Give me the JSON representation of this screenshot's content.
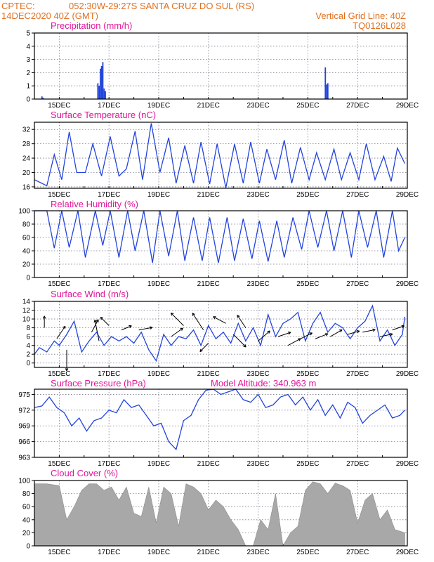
{
  "header": {
    "source": "CPTEC:",
    "location": "052:30W-29:27S  SANTA CRUZ DO SUL (RS)",
    "date": "14DEC2020 40Z (GMT)",
    "grid_note": "Vertical Grid Line: 40Z",
    "code": "TQ0126L028"
  },
  "x_ticks": [
    "15DEC",
    "17DEC",
    "19DEC",
    "21DEC",
    "23DEC",
    "25DEC",
    "27DEC",
    "29DEC"
  ],
  "colors": {
    "header": "#e07020",
    "title": "#e0169a",
    "line": "#2244dd",
    "cloud": "#a8a8a8"
  },
  "chart_data": [
    {
      "type": "bar",
      "title": "Precipitation (mm/h)",
      "x_unit": "days since 14DEC2020",
      "ylim": [
        0,
        5
      ],
      "yticks": [
        0,
        1,
        2,
        3,
        4,
        5
      ],
      "x": [
        0.3,
        0.35,
        2.55,
        2.6,
        2.65,
        2.7,
        2.75,
        2.8,
        2.85,
        11.7,
        11.75,
        11.8
      ],
      "values": [
        0.2,
        0.1,
        1.2,
        1.0,
        2.3,
        2.5,
        2.8,
        0.8,
        0.6,
        2.4,
        1.1,
        1.2
      ]
    },
    {
      "type": "line",
      "title": "Surface Temperature (nC)",
      "x_unit": "days since 14DEC2020",
      "ylim": [
        15.6,
        34
      ],
      "yticks": [
        16,
        20,
        24,
        28,
        32
      ],
      "x": [
        0,
        0.5,
        0.8,
        1.1,
        1.4,
        1.7,
        2.05,
        2.35,
        2.7,
        3.05,
        3.4,
        3.7,
        4.05,
        4.35,
        4.7,
        5.05,
        5.4,
        5.7,
        6.05,
        6.4,
        6.7,
        7.05,
        7.35,
        7.7,
        8.05,
        8.4,
        8.7,
        9.05,
        9.35,
        9.7,
        10.05,
        10.35,
        10.7,
        11.05,
        11.35,
        11.7,
        12.05,
        12.35,
        12.7,
        13.05,
        13.35,
        13.7,
        14.05,
        14.35,
        14.6,
        14.9
      ],
      "values": [
        18,
        16.3,
        25,
        18,
        31.3,
        20,
        20,
        28,
        19,
        30,
        19,
        21,
        31.5,
        18,
        33.7,
        20,
        29.7,
        17,
        27.5,
        17,
        28.5,
        16.8,
        28,
        15.7,
        27.9,
        17,
        28.5,
        17,
        26.5,
        18,
        29,
        17,
        27,
        18,
        25.5,
        18,
        26.5,
        18,
        25.5,
        18,
        28,
        18,
        24.5,
        17.5,
        26.8,
        22.5
      ]
    },
    {
      "type": "line",
      "title": "Relative Humidity (%)",
      "x_unit": "days since 14DEC2020",
      "ylim": [
        0,
        100
      ],
      "yticks": [
        0,
        20,
        40,
        60,
        80,
        100
      ],
      "x": [
        0,
        0.5,
        0.8,
        1.1,
        1.4,
        1.75,
        2.05,
        2.45,
        2.75,
        3.05,
        3.4,
        3.75,
        4.05,
        4.4,
        4.75,
        5.05,
        5.4,
        5.75,
        6.05,
        6.4,
        6.75,
        7.05,
        7.4,
        7.75,
        8.05,
        8.4,
        8.75,
        9.05,
        9.4,
        9.75,
        10.05,
        10.4,
        10.75,
        11.05,
        11.4,
        11.75,
        12.05,
        12.4,
        12.75,
        13.05,
        13.4,
        13.75,
        14.05,
        14.4,
        14.65,
        14.9
      ],
      "values": [
        100,
        100,
        44,
        100,
        45,
        100,
        30,
        100,
        48,
        100,
        30,
        100,
        40,
        100,
        22,
        100,
        32,
        100,
        25,
        90,
        25,
        90,
        22,
        90,
        25,
        88,
        28,
        85,
        24,
        85,
        30,
        90,
        42,
        100,
        45,
        100,
        40,
        100,
        30,
        100,
        45,
        100,
        30,
        100,
        40,
        60
      ]
    },
    {
      "type": "line",
      "title": "Surface Wind (m/s)",
      "x_unit": "days since 14DEC2020",
      "ylim": [
        -1,
        14
      ],
      "yticks": [
        0,
        2,
        4,
        6,
        8,
        10,
        12,
        14
      ],
      "x": [
        0,
        0.2,
        0.5,
        0.8,
        1.0,
        1.3,
        1.6,
        1.9,
        2.2,
        2.5,
        2.8,
        3.1,
        3.4,
        3.7,
        4.0,
        4.3,
        4.6,
        4.9,
        5.2,
        5.5,
        5.8,
        6.1,
        6.4,
        6.7,
        7.0,
        7.3,
        7.6,
        7.9,
        8.2,
        8.5,
        8.8,
        9.1,
        9.4,
        9.7,
        10.0,
        10.3,
        10.6,
        10.9,
        11.2,
        11.5,
        11.8,
        12.1,
        12.4,
        12.7,
        13.0,
        13.3,
        13.6,
        13.9,
        14.2,
        14.5,
        14.8,
        14.9
      ],
      "values": [
        2,
        3.5,
        2.5,
        5,
        4,
        6.5,
        9.5,
        2.5,
        5,
        7,
        4,
        6,
        5,
        6,
        4.5,
        7,
        3,
        0.5,
        6.5,
        4,
        6,
        5.5,
        7.5,
        4,
        8.5,
        5.5,
        7,
        4.5,
        9,
        5,
        8,
        4,
        11,
        6,
        9,
        10,
        11.5,
        5,
        9,
        11.5,
        7,
        9,
        8,
        5.5,
        8,
        9.5,
        13,
        5,
        7.5,
        4,
        6.5,
        10.5
      ],
      "vectors": [
        {
          "x": 0.4,
          "y": 8.0,
          "u": 0.0,
          "v": 1.4
        },
        {
          "x": 0.9,
          "y": 5.5,
          "u": 1.0,
          "v": 1.5
        },
        {
          "x": 1.3,
          "y": 3.0,
          "u": 0.0,
          "v": -2.5
        },
        {
          "x": 2.3,
          "y": 7.0,
          "u": 0.8,
          "v": 1.5
        },
        {
          "x": 2.6,
          "y": 5.0,
          "u": -0.5,
          "v": 2.5
        },
        {
          "x": 3.0,
          "y": 8.5,
          "u": -1.0,
          "v": 1.0
        },
        {
          "x": 3.5,
          "y": 7.5,
          "u": 1.2,
          "v": 0.5
        },
        {
          "x": 4.2,
          "y": 7.5,
          "u": 1.6,
          "v": 0.3
        },
        {
          "x": 5.5,
          "y": 6.0,
          "u": 1.4,
          "v": 1.0
        },
        {
          "x": 6.0,
          "y": 8.5,
          "u": -1.5,
          "v": 1.5
        },
        {
          "x": 6.8,
          "y": 7.5,
          "u": -1.3,
          "v": 2.0
        },
        {
          "x": 7.0,
          "y": 4.5,
          "u": -1.0,
          "v": -1.0
        },
        {
          "x": 7.7,
          "y": 9.0,
          "u": -1.5,
          "v": 0.8
        },
        {
          "x": 8.0,
          "y": 6.5,
          "u": 1.5,
          "v": -1.5
        },
        {
          "x": 8.5,
          "y": 8.0,
          "u": -1.0,
          "v": 1.5
        },
        {
          "x": 9.0,
          "y": 5.0,
          "u": 1.4,
          "v": 1.2
        },
        {
          "x": 9.8,
          "y": 6.0,
          "u": 1.5,
          "v": 0.5
        },
        {
          "x": 10.2,
          "y": 4.0,
          "u": 1.5,
          "v": 0.8
        },
        {
          "x": 10.7,
          "y": 5.5,
          "u": 1.4,
          "v": 0.7
        },
        {
          "x": 11.3,
          "y": 5.5,
          "u": 1.5,
          "v": 0.6
        },
        {
          "x": 11.9,
          "y": 6.0,
          "u": 1.4,
          "v": 0.8
        },
        {
          "x": 12.6,
          "y": 6.5,
          "u": 1.4,
          "v": 0.4
        },
        {
          "x": 13.2,
          "y": 7.0,
          "u": 1.5,
          "v": 0.3
        },
        {
          "x": 13.9,
          "y": 6.0,
          "u": 1.5,
          "v": 0.3
        },
        {
          "x": 14.4,
          "y": 7.5,
          "u": 1.4,
          "v": 0.5
        }
      ]
    },
    {
      "type": "line",
      "title": "Surface Pressure (hPa)",
      "annotation": "Model Altitude: 340.963 m",
      "x_unit": "days since 14DEC2020",
      "ylim": [
        963,
        976
      ],
      "yticks": [
        963,
        966,
        969,
        972,
        975
      ],
      "x": [
        0,
        0.3,
        0.6,
        0.9,
        1.2,
        1.5,
        1.8,
        2.1,
        2.4,
        2.7,
        3.0,
        3.3,
        3.6,
        3.9,
        4.2,
        4.5,
        4.8,
        5.1,
        5.4,
        5.7,
        6.0,
        6.3,
        6.6,
        6.9,
        7.2,
        7.5,
        7.8,
        8.1,
        8.4,
        8.7,
        9.0,
        9.3,
        9.6,
        9.9,
        10.2,
        10.5,
        10.8,
        11.1,
        11.4,
        11.7,
        12.0,
        12.3,
        12.6,
        12.9,
        13.2,
        13.5,
        13.8,
        14.1,
        14.4,
        14.7,
        14.9
      ],
      "values": [
        972.5,
        972.8,
        974.5,
        972.5,
        971.5,
        969,
        970.5,
        968,
        970,
        970.5,
        972,
        971.5,
        974,
        972.5,
        973,
        971,
        969,
        969.5,
        966,
        964.5,
        970,
        971,
        974,
        975.8,
        976,
        975,
        975.5,
        976,
        974,
        973.5,
        975,
        972.5,
        973,
        974.5,
        975,
        973,
        974.5,
        972,
        974,
        971,
        973,
        970.5,
        973.5,
        972.5,
        969.5,
        971,
        972,
        973,
        970.5,
        971,
        972
      ]
    },
    {
      "type": "area",
      "title": "Cloud Cover (%)",
      "x_unit": "days since 14DEC2020",
      "ylim": [
        0,
        100
      ],
      "yticks": [
        0,
        20,
        40,
        60,
        80,
        100
      ],
      "x": [
        0,
        0.5,
        1.0,
        1.3,
        1.6,
        1.9,
        2.2,
        2.5,
        2.8,
        3.1,
        3.4,
        3.7,
        4.0,
        4.3,
        4.6,
        4.9,
        5.2,
        5.5,
        5.8,
        6.1,
        6.4,
        6.7,
        7.0,
        7.3,
        7.6,
        7.9,
        8.2,
        8.5,
        8.8,
        9.1,
        9.4,
        9.7,
        10.0,
        10.3,
        10.6,
        10.9,
        11.2,
        11.5,
        11.8,
        12.1,
        12.4,
        12.7,
        13.0,
        13.3,
        13.6,
        13.9,
        14.2,
        14.5,
        14.9
      ],
      "values": [
        95,
        95,
        92,
        40,
        60,
        85,
        95,
        95,
        85,
        90,
        70,
        90,
        50,
        45,
        90,
        35,
        90,
        80,
        30,
        95,
        90,
        80,
        55,
        70,
        60,
        40,
        25,
        0,
        0,
        40,
        25,
        80,
        0,
        20,
        30,
        85,
        98,
        95,
        80,
        96,
        92,
        85,
        35,
        70,
        80,
        40,
        55,
        25,
        20
      ]
    }
  ]
}
